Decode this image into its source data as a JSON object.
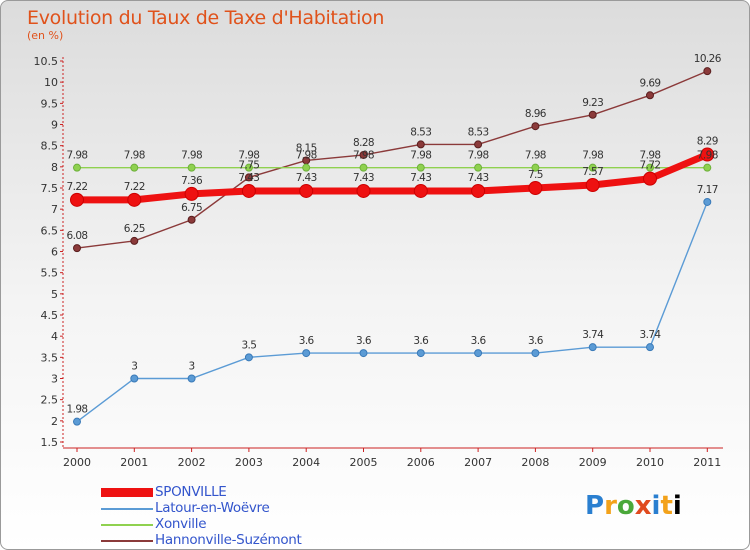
{
  "header": {
    "title": "Evolution du Taux de Taxe d'Habitation",
    "unit": "(en %)"
  },
  "logo": {
    "text": "Proxiti"
  },
  "chart_data": {
    "type": "line",
    "title": "Evolution du Taux de Taxe d'Habitation",
    "ylabel": "(en %)",
    "xlabel": "",
    "x": [
      "2000",
      "2001",
      "2002",
      "2003",
      "2004",
      "2005",
      "2006",
      "2007",
      "2008",
      "2009",
      "2010",
      "2011"
    ],
    "ylim": [
      1.5,
      10.5
    ],
    "yticks": [
      "1.5",
      "2",
      "2.5",
      "3",
      "3.5",
      "4",
      "4.5",
      "5",
      "5.5",
      "6",
      "6.5",
      "7",
      "7.5",
      "8",
      "8.5",
      "9",
      "9.5",
      "10",
      "10.5"
    ],
    "grid": false,
    "legend_position": "bottom-left",
    "series": [
      {
        "name": "SPONVILLE",
        "color": "#ee1111",
        "values": [
          7.22,
          7.22,
          7.36,
          7.43,
          7.43,
          7.43,
          7.43,
          7.43,
          7.5,
          7.57,
          7.72,
          8.29
        ],
        "labels": [
          "7.22",
          "7.22",
          "7.36",
          "7.43",
          "7.43",
          "7.43",
          "7.43",
          "7.43",
          "7.5",
          "7.57",
          "7.72",
          "8.29"
        ]
      },
      {
        "name": "Latour-en-Woëvre",
        "color": "#5b9bd5",
        "values": [
          1.98,
          3,
          3,
          3.5,
          3.6,
          3.6,
          3.6,
          3.6,
          3.6,
          3.74,
          3.74,
          7.17
        ],
        "labels": [
          "1.98",
          "3",
          "3",
          "3.5",
          "3.6",
          "3.6",
          "3.6",
          "3.6",
          "3.6",
          "3.74",
          "3.74",
          "7.17"
        ]
      },
      {
        "name": "Xonville",
        "color": "#8fd14f",
        "values": [
          7.98,
          7.98,
          7.98,
          7.98,
          7.98,
          7.98,
          7.98,
          7.98,
          7.98,
          7.98,
          7.98,
          7.98
        ],
        "labels": [
          "7.98",
          "7.98",
          "7.98",
          "7.98",
          "7.98",
          "7.98",
          "7.98",
          "7.98",
          "7.98",
          "7.98",
          "7.98",
          "7.98"
        ]
      },
      {
        "name": "Hannonville-Suzémont",
        "color": "#8b3a3a",
        "values": [
          6.08,
          6.25,
          6.75,
          7.75,
          8.15,
          8.28,
          8.53,
          8.53,
          8.96,
          9.23,
          9.69,
          10.26
        ],
        "labels": [
          "6.08",
          "6.25",
          "6.75",
          "7.75",
          "8.15",
          "8.28",
          "8.53",
          "8.53",
          "8.96",
          "9.23",
          "9.69",
          "10.26"
        ]
      }
    ]
  }
}
